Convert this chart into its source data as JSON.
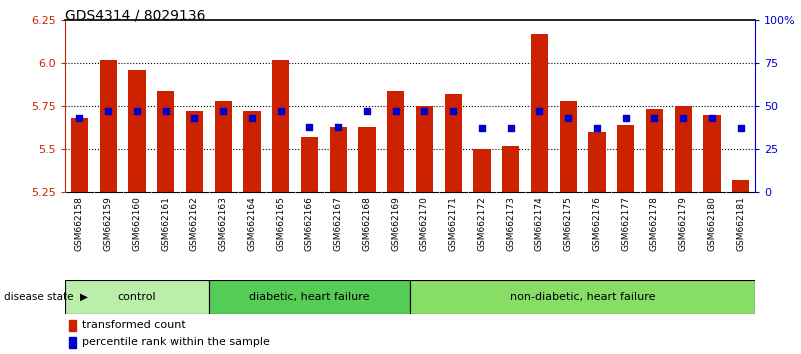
{
  "title": "GDS4314 / 8029136",
  "samples": [
    "GSM662158",
    "GSM662159",
    "GSM662160",
    "GSM662161",
    "GSM662162",
    "GSM662163",
    "GSM662164",
    "GSM662165",
    "GSM662166",
    "GSM662167",
    "GSM662168",
    "GSM662169",
    "GSM662170",
    "GSM662171",
    "GSM662172",
    "GSM662173",
    "GSM662174",
    "GSM662175",
    "GSM662176",
    "GSM662177",
    "GSM662178",
    "GSM662179",
    "GSM662180",
    "GSM662181"
  ],
  "bar_values": [
    5.68,
    6.02,
    5.96,
    5.84,
    5.72,
    5.78,
    5.72,
    6.02,
    5.57,
    5.63,
    5.63,
    5.84,
    5.75,
    5.82,
    5.5,
    5.52,
    6.17,
    5.78,
    5.6,
    5.64,
    5.73,
    5.75,
    5.7,
    5.32
  ],
  "percentile_values": [
    43,
    47,
    47,
    47,
    43,
    47,
    43,
    47,
    38,
    38,
    47,
    47,
    47,
    47,
    37,
    37,
    47,
    43,
    37,
    43,
    43,
    43,
    43,
    37
  ],
  "groups": [
    {
      "label": "control",
      "start": 0,
      "end": 4,
      "color": "#bbeeaa"
    },
    {
      "label": "diabetic, heart failure",
      "start": 5,
      "end": 11,
      "color": "#55cc55"
    },
    {
      "label": "non-diabetic, heart failure",
      "start": 12,
      "end": 23,
      "color": "#88dd66"
    }
  ],
  "y_min": 5.25,
  "y_max": 6.25,
  "y_ticks_left": [
    5.25,
    5.5,
    5.75,
    6.0,
    6.25
  ],
  "y_ticks_right_vals": [
    0,
    25,
    50,
    75,
    100
  ],
  "y_ticks_right_labels": [
    "0",
    "25",
    "50",
    "75",
    "100%"
  ],
  "bar_color": "#cc2200",
  "dot_color": "#0000cc",
  "grid_lines": [
    5.5,
    5.75,
    6.0
  ],
  "title_fontsize": 10,
  "bar_width": 0.6,
  "sample_label_fontsize": 6.5,
  "group_label_fontsize": 8,
  "legend_fontsize": 8
}
